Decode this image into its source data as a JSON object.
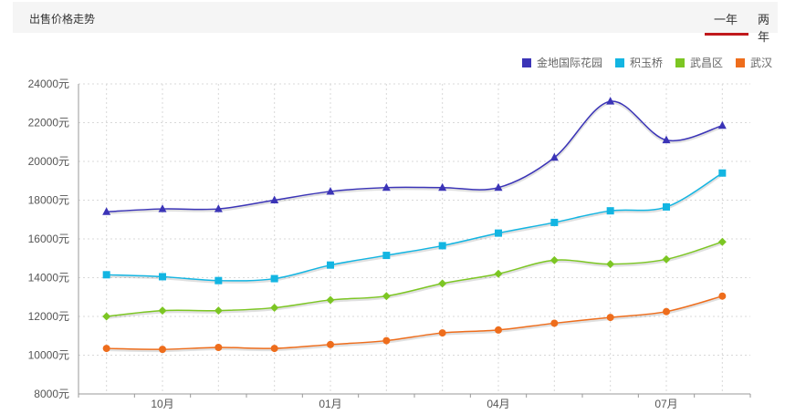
{
  "header": {
    "title": "出售价格走势",
    "tabs": [
      {
        "label": "一年",
        "active": true
      },
      {
        "label": "两年",
        "active": false
      }
    ]
  },
  "colors": {
    "accent": "#c0191c"
  },
  "chart_data": {
    "type": "line",
    "title": "",
    "xlabel": "",
    "ylabel": "",
    "x_tick_labels": [
      "10月",
      "01月",
      "04月",
      "07月"
    ],
    "x_tick_positions": [
      1,
      4,
      7,
      10
    ],
    "ylim": [
      8000,
      24000
    ],
    "y_ticks": [
      8000,
      10000,
      12000,
      14000,
      16000,
      18000,
      20000,
      22000,
      24000
    ],
    "y_unit": "元",
    "grid": true,
    "legend_position": "top-right",
    "series": [
      {
        "name": "金地国际花园",
        "color": "#3b34b7",
        "marker": "triangle",
        "values": [
          17400,
          17550,
          17550,
          18000,
          18450,
          18650,
          18650,
          18650,
          20200,
          23100,
          21100,
          21850
        ]
      },
      {
        "name": "积玉桥",
        "color": "#13b5e2",
        "marker": "square",
        "values": [
          14150,
          14050,
          13850,
          13950,
          14650,
          15150,
          15650,
          16300,
          16850,
          17450,
          17650,
          19400
        ]
      },
      {
        "name": "武昌区",
        "color": "#7cc623",
        "marker": "diamond",
        "values": [
          12000,
          12300,
          12300,
          12450,
          12850,
          13050,
          13700,
          14200,
          14900,
          14700,
          14950,
          15850
        ]
      },
      {
        "name": "武汉",
        "color": "#ee6d1c",
        "marker": "circle",
        "values": [
          10350,
          10300,
          10400,
          10350,
          10550,
          10750,
          11150,
          11300,
          11650,
          11950,
          12250,
          13050
        ]
      }
    ]
  }
}
